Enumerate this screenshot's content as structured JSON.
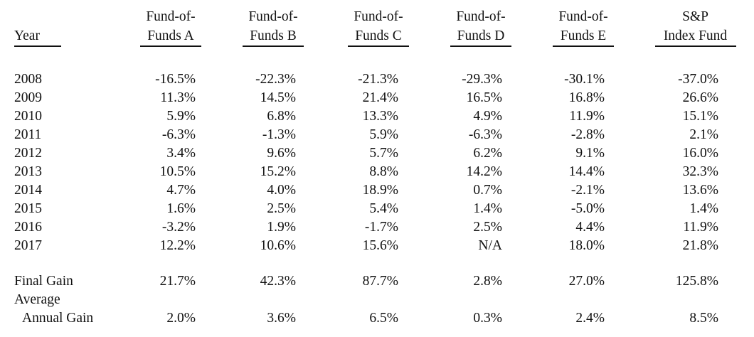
{
  "header": {
    "year": "Year",
    "columns": [
      {
        "line1": "Fund-of-",
        "line2": "Funds A"
      },
      {
        "line1": "Fund-of-",
        "line2": "Funds B"
      },
      {
        "line1": "Fund-of-",
        "line2": "Funds C"
      },
      {
        "line1": "Fund-of-",
        "line2": "Funds D"
      },
      {
        "line1": "Fund-of-",
        "line2": "Funds E"
      },
      {
        "line1": "S&P",
        "line2": "Index Fund"
      }
    ]
  },
  "rows": [
    {
      "year": "2008",
      "values": [
        "-16.5%",
        "-22.3%",
        "-21.3%",
        "-29.3%",
        "-30.1%",
        "-37.0%"
      ]
    },
    {
      "year": "2009",
      "values": [
        "11.3%",
        "14.5%",
        "21.4%",
        "16.5%",
        "16.8%",
        "26.6%"
      ]
    },
    {
      "year": "2010",
      "values": [
        "5.9%",
        "6.8%",
        "13.3%",
        "4.9%",
        "11.9%",
        "15.1%"
      ]
    },
    {
      "year": "2011",
      "values": [
        "-6.3%",
        "-1.3%",
        "5.9%",
        "-6.3%",
        "-2.8%",
        "2.1%"
      ]
    },
    {
      "year": "2012",
      "values": [
        "3.4%",
        "9.6%",
        "5.7%",
        "6.2%",
        "9.1%",
        "16.0%"
      ]
    },
    {
      "year": "2013",
      "values": [
        "10.5%",
        "15.2%",
        "8.8%",
        "14.2%",
        "14.4%",
        "32.3%"
      ]
    },
    {
      "year": "2014",
      "values": [
        "4.7%",
        "4.0%",
        "18.9%",
        "0.7%",
        "-2.1%",
        "13.6%"
      ]
    },
    {
      "year": "2015",
      "values": [
        "1.6%",
        "2.5%",
        "5.4%",
        "1.4%",
        "-5.0%",
        "1.4%"
      ]
    },
    {
      "year": "2016",
      "values": [
        "-3.2%",
        "1.9%",
        "-1.7%",
        "2.5%",
        "4.4%",
        "11.9%"
      ]
    },
    {
      "year": "2017",
      "values": [
        "12.2%",
        "10.6%",
        "15.6%",
        "N/A",
        "18.0%",
        "21.8%"
      ]
    }
  ],
  "summary": {
    "final_gain": {
      "label": "Final Gain",
      "values": [
        "21.7%",
        "42.3%",
        "87.7%",
        "2.8%",
        "27.0%",
        "125.8%"
      ]
    },
    "average": {
      "label_line1": "Average",
      "label_line2": "Annual Gain",
      "values": [
        "2.0%",
        "3.6%",
        "6.5%",
        "0.3%",
        "2.4%",
        "8.5%"
      ]
    }
  }
}
